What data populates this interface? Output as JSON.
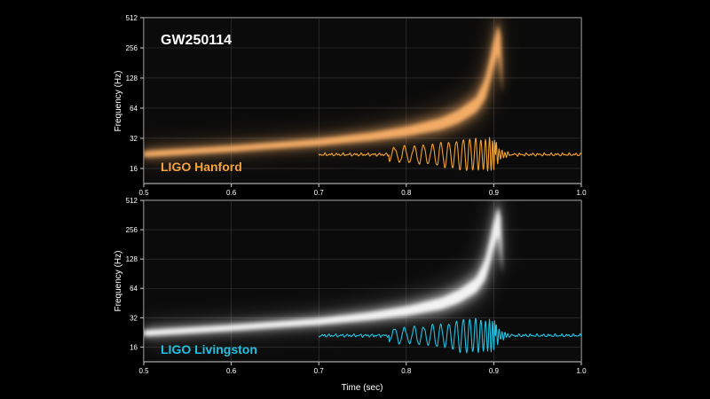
{
  "event_title": "GW250114",
  "chart_data": [
    {
      "type": "heatmap",
      "subtype": "time-frequency spectrogram with overlaid strain waveform",
      "detector_label": "LIGO Hanford",
      "label_color": "#f5a33c",
      "track_color": "#ffb46a",
      "waveform_color": "#f0a030",
      "title": "GW250114",
      "xlabel": "",
      "ylabel": "Frequency (Hz)",
      "xlim": [
        0.5,
        1.0
      ],
      "ylim": [
        11.3,
        512
      ],
      "yscale": "log2",
      "xticks": [
        "0.5",
        "0.6",
        "0.7",
        "0.8",
        "0.9",
        "1.0"
      ],
      "yticks": [
        "16",
        "32",
        "64",
        "128",
        "256",
        "512"
      ],
      "grid": true,
      "track": {
        "time": [
          0.5,
          0.6,
          0.7,
          0.76,
          0.8,
          0.84,
          0.86,
          0.88,
          0.89,
          0.895,
          0.9,
          0.905
        ],
        "frequency": [
          22,
          25,
          29,
          33,
          37,
          44,
          52,
          68,
          96,
          140,
          220,
          300
        ]
      },
      "waveform": {
        "t_start": 0.7,
        "t_end": 1.0,
        "t_merger": 0.902
      }
    },
    {
      "type": "heatmap",
      "subtype": "time-frequency spectrogram with overlaid strain waveform",
      "detector_label": "LIGO Livingston",
      "label_color": "#22c0e0",
      "track_color": "#ffffff",
      "waveform_color": "#22c0e0",
      "xlabel": "Time (sec)",
      "ylabel": "Frequency (Hz)",
      "xlim": [
        0.5,
        1.0
      ],
      "ylim": [
        11.3,
        512
      ],
      "yscale": "log2",
      "xticks": [
        "0.5",
        "0.6",
        "0.7",
        "0.8",
        "0.9",
        "1.0"
      ],
      "yticks": [
        "16",
        "32",
        "64",
        "128",
        "256",
        "512"
      ],
      "grid": true,
      "track": {
        "time": [
          0.5,
          0.6,
          0.7,
          0.76,
          0.8,
          0.84,
          0.86,
          0.88,
          0.89,
          0.895,
          0.9,
          0.905
        ],
        "frequency": [
          22,
          25,
          29,
          33,
          37,
          44,
          52,
          68,
          96,
          140,
          220,
          300
        ]
      },
      "waveform": {
        "t_start": 0.7,
        "t_end": 1.0,
        "t_merger": 0.902
      }
    }
  ]
}
